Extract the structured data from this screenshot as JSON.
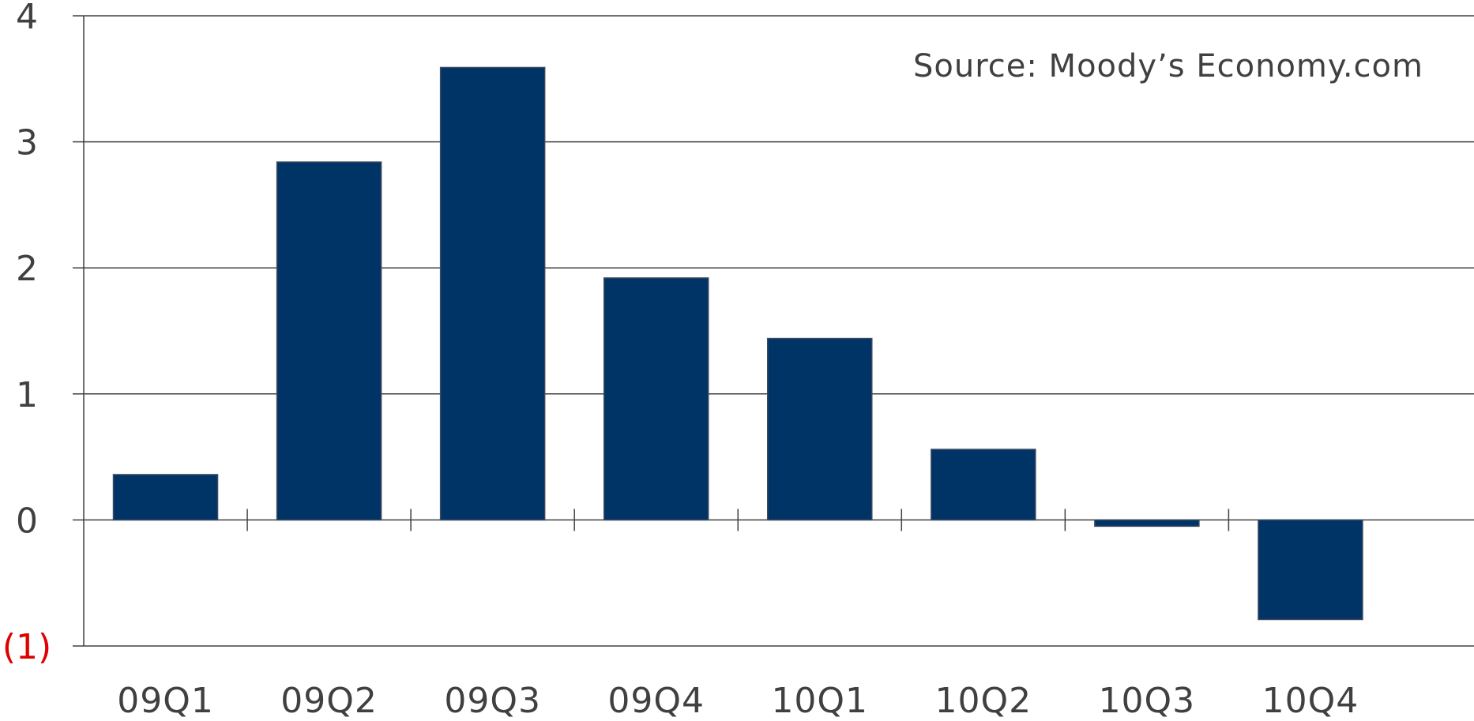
{
  "chart_data": {
    "type": "bar",
    "categories": [
      "09Q1",
      "09Q2",
      "09Q3",
      "09Q4",
      "10Q1",
      "10Q2",
      "10Q3",
      "10Q4"
    ],
    "values": [
      0.36,
      2.84,
      3.59,
      1.92,
      1.44,
      0.56,
      -0.05,
      -0.79
    ],
    "ylim": [
      -1,
      4
    ],
    "yticks": [
      4,
      3,
      2,
      1,
      0,
      -1
    ],
    "ytick_labels": [
      "4",
      "3",
      "2",
      "1",
      "0",
      "(1)"
    ],
    "annotation": "Source: Moody’s Economy.com",
    "grid": true,
    "bar_color": "#003366",
    "negative_label_color": "#e00000",
    "title": "",
    "xlabel": "",
    "ylabel": ""
  }
}
